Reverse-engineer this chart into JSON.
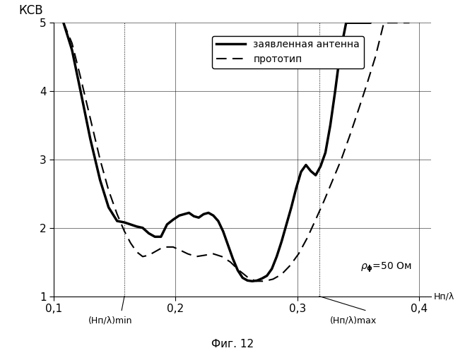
{
  "title_ylabel": "КСВ",
  "xlabel_axis": "Hп/λ",
  "caption": "Фиг. 12",
  "xlim": [
    0.1,
    0.41
  ],
  "ylim": [
    1.0,
    5.0
  ],
  "xticks": [
    0.1,
    0.2,
    0.3,
    0.4
  ],
  "yticks": [
    1,
    2,
    3,
    4,
    5
  ],
  "vline1_x": 0.158,
  "vline2_x": 0.318,
  "vline1_label": "(Hп/λ)min",
  "vline2_label": "(Hп/λ)max",
  "legend_solid": "заявленная антенна",
  "legend_dashed": "прототип",
  "solid_x": [
    0.108,
    0.115,
    0.122,
    0.13,
    0.138,
    0.145,
    0.152,
    0.158,
    0.163,
    0.168,
    0.173,
    0.178,
    0.183,
    0.188,
    0.193,
    0.198,
    0.203,
    0.207,
    0.211,
    0.215,
    0.219,
    0.223,
    0.227,
    0.231,
    0.235,
    0.239,
    0.243,
    0.247,
    0.251,
    0.255,
    0.259,
    0.263,
    0.267,
    0.271,
    0.275,
    0.279,
    0.283,
    0.287,
    0.291,
    0.295,
    0.299,
    0.303,
    0.307,
    0.311,
    0.315,
    0.319,
    0.323,
    0.327,
    0.331,
    0.335,
    0.34,
    0.345,
    0.35,
    0.355,
    0.36
  ],
  "solid_y": [
    5.0,
    4.6,
    4.0,
    3.3,
    2.7,
    2.3,
    2.1,
    2.08,
    2.05,
    2.02,
    2.0,
    1.92,
    1.87,
    1.87,
    2.05,
    2.12,
    2.18,
    2.2,
    2.22,
    2.17,
    2.15,
    2.2,
    2.22,
    2.18,
    2.1,
    1.95,
    1.75,
    1.55,
    1.38,
    1.27,
    1.23,
    1.22,
    1.23,
    1.26,
    1.3,
    1.4,
    1.58,
    1.8,
    2.05,
    2.3,
    2.58,
    2.82,
    2.92,
    2.83,
    2.77,
    2.9,
    3.1,
    3.5,
    4.0,
    4.55,
    5.0,
    5.0,
    5.0,
    5.0,
    5.0
  ],
  "dashed_x": [
    0.108,
    0.115,
    0.122,
    0.13,
    0.138,
    0.145,
    0.152,
    0.158,
    0.163,
    0.168,
    0.173,
    0.178,
    0.183,
    0.188,
    0.193,
    0.198,
    0.203,
    0.21,
    0.217,
    0.224,
    0.231,
    0.238,
    0.245,
    0.252,
    0.259,
    0.266,
    0.273,
    0.28,
    0.287,
    0.294,
    0.301,
    0.308,
    0.315,
    0.322,
    0.329,
    0.336,
    0.343,
    0.35,
    0.357,
    0.364,
    0.371,
    0.378,
    0.385,
    0.392
  ],
  "dashed_y": [
    5.0,
    4.7,
    4.2,
    3.6,
    3.0,
    2.55,
    2.2,
    1.95,
    1.78,
    1.65,
    1.58,
    1.6,
    1.65,
    1.7,
    1.72,
    1.72,
    1.68,
    1.62,
    1.58,
    1.6,
    1.62,
    1.58,
    1.5,
    1.38,
    1.28,
    1.22,
    1.22,
    1.25,
    1.32,
    1.45,
    1.62,
    1.85,
    2.12,
    2.4,
    2.7,
    3.0,
    3.35,
    3.72,
    4.1,
    4.5,
    5.0,
    5.0,
    5.0,
    5.0
  ]
}
